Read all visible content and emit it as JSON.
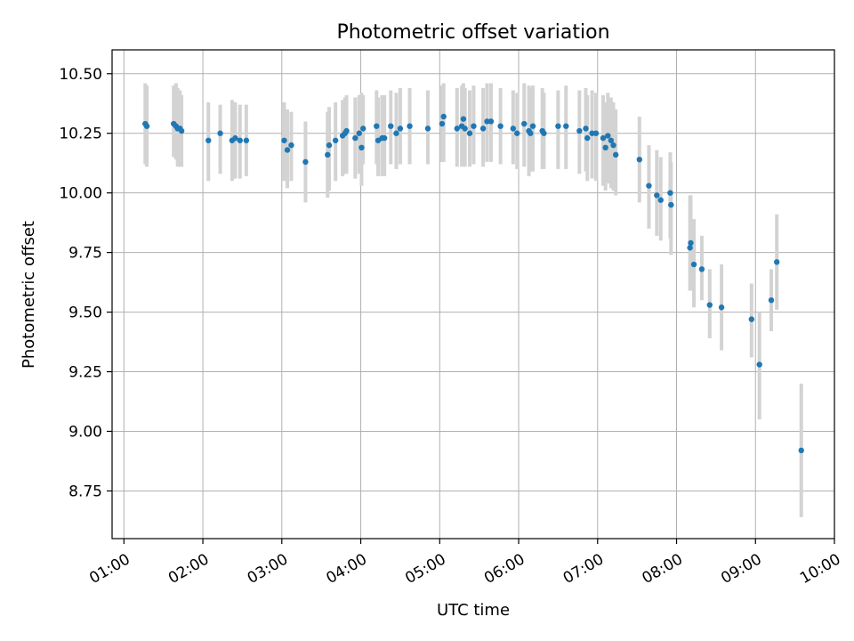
{
  "chart_data": {
    "type": "scatter",
    "title": "Photometric offset variation",
    "xlabel": "UTC time",
    "ylabel": "Photometric offset",
    "x_tick_labels": [
      "01:00",
      "02:00",
      "03:00",
      "04:00",
      "05:00",
      "06:00",
      "07:00",
      "08:00",
      "09:00",
      "10:00"
    ],
    "x_ticks_hours": [
      1,
      2,
      3,
      4,
      5,
      6,
      7,
      8,
      9,
      10
    ],
    "xlim_hours": [
      0.85,
      10.0
    ],
    "y_tick_labels": [
      "8.75",
      "9.00",
      "9.25",
      "9.50",
      "9.75",
      "10.00",
      "10.25",
      "10.50"
    ],
    "y_ticks": [
      8.75,
      9.0,
      9.25,
      9.5,
      9.75,
      10.0,
      10.25,
      10.5
    ],
    "ylim": [
      8.55,
      10.6
    ],
    "grid": true,
    "colors": {
      "point": "#1f77b4",
      "errorbar": "#d3d3d3",
      "grid": "#b0b0b0"
    },
    "series": [
      {
        "x_hours": [
          1.27,
          1.29,
          1.63,
          1.66,
          1.68,
          1.71,
          1.73,
          2.07,
          2.22,
          2.37,
          2.41,
          2.47,
          2.55,
          3.03,
          3.07,
          3.12,
          3.3,
          3.58,
          3.6,
          3.68,
          3.77,
          3.8,
          3.82,
          3.93,
          3.98,
          4.01,
          4.03,
          4.2,
          4.22,
          4.27,
          4.3,
          4.38,
          4.45,
          4.5,
          4.62,
          4.85,
          5.03,
          5.05,
          5.22,
          5.28,
          5.3,
          5.32,
          5.38,
          5.43,
          5.55,
          5.6,
          5.65,
          5.77,
          5.93,
          5.98,
          6.07,
          6.13,
          6.15,
          6.18,
          6.3,
          6.32,
          6.5,
          6.6,
          6.77,
          6.85,
          6.87,
          6.93,
          6.98,
          7.07,
          7.1,
          7.13,
          7.17,
          7.2,
          7.23,
          7.53,
          7.65,
          7.75,
          7.8,
          7.92,
          7.93,
          8.17,
          8.18,
          8.22,
          8.32,
          8.42,
          8.57,
          8.95,
          9.05,
          9.2,
          9.27,
          9.58
        ],
        "y": [
          10.29,
          10.28,
          10.29,
          10.28,
          10.27,
          10.27,
          10.26,
          10.22,
          10.25,
          10.22,
          10.23,
          10.22,
          10.22,
          10.22,
          10.18,
          10.2,
          10.13,
          10.16,
          10.2,
          10.22,
          10.24,
          10.25,
          10.26,
          10.23,
          10.25,
          10.19,
          10.27,
          10.28,
          10.22,
          10.23,
          10.23,
          10.28,
          10.25,
          10.27,
          10.28,
          10.27,
          10.29,
          10.32,
          10.27,
          10.28,
          10.31,
          10.27,
          10.25,
          10.28,
          10.27,
          10.3,
          10.3,
          10.28,
          10.27,
          10.25,
          10.29,
          10.26,
          10.25,
          10.28,
          10.26,
          10.25,
          10.28,
          10.28,
          10.26,
          10.27,
          10.23,
          10.25,
          10.25,
          10.23,
          10.19,
          10.24,
          10.22,
          10.2,
          10.16,
          10.14,
          10.03,
          9.99,
          9.97,
          10.0,
          9.95,
          9.77,
          9.79,
          9.7,
          9.68,
          9.53,
          9.52,
          9.47,
          9.28,
          9.55,
          9.71,
          8.92
        ],
        "err_low": [
          10.12,
          10.11,
          10.15,
          10.14,
          10.11,
          10.11,
          10.11,
          10.05,
          10.08,
          10.05,
          10.06,
          10.06,
          10.07,
          10.05,
          10.02,
          10.05,
          9.96,
          9.98,
          10.01,
          10.05,
          10.07,
          10.08,
          10.08,
          10.06,
          10.08,
          10.03,
          10.12,
          10.12,
          10.07,
          10.07,
          10.07,
          10.12,
          10.1,
          10.12,
          10.12,
          10.12,
          10.13,
          10.13,
          10.11,
          10.11,
          10.13,
          10.11,
          10.11,
          10.12,
          10.11,
          10.13,
          10.13,
          10.12,
          10.12,
          10.1,
          10.11,
          10.07,
          10.09,
          10.09,
          10.1,
          10.1,
          10.1,
          10.1,
          10.08,
          10.09,
          10.05,
          10.06,
          10.05,
          10.03,
          10.01,
          10.04,
          10.02,
          10.01,
          9.99,
          9.96,
          9.85,
          9.82,
          9.8,
          9.81,
          9.74,
          9.59,
          9.59,
          9.52,
          9.55,
          9.39,
          9.34,
          9.31,
          9.05,
          9.42,
          9.51,
          8.64
        ],
        "err_high": [
          10.46,
          10.45,
          10.45,
          10.46,
          10.44,
          10.43,
          10.41,
          10.38,
          10.37,
          10.39,
          10.38,
          10.37,
          10.37,
          10.38,
          10.35,
          10.34,
          10.3,
          10.34,
          10.36,
          10.38,
          10.39,
          10.4,
          10.41,
          10.4,
          10.41,
          10.42,
          10.41,
          10.43,
          10.4,
          10.41,
          10.41,
          10.43,
          10.42,
          10.44,
          10.44,
          10.43,
          10.45,
          10.46,
          10.44,
          10.45,
          10.46,
          10.44,
          10.43,
          10.45,
          10.44,
          10.46,
          10.46,
          10.44,
          10.43,
          10.42,
          10.46,
          10.45,
          10.44,
          10.45,
          10.44,
          10.42,
          10.43,
          10.45,
          10.43,
          10.44,
          10.41,
          10.43,
          10.42,
          10.41,
          10.38,
          10.42,
          10.4,
          10.38,
          10.35,
          10.32,
          10.2,
          10.18,
          10.15,
          10.17,
          10.13,
          9.99,
          9.99,
          9.89,
          9.82,
          9.68,
          9.7,
          9.62,
          9.5,
          9.68,
          9.91,
          9.2
        ]
      }
    ]
  }
}
